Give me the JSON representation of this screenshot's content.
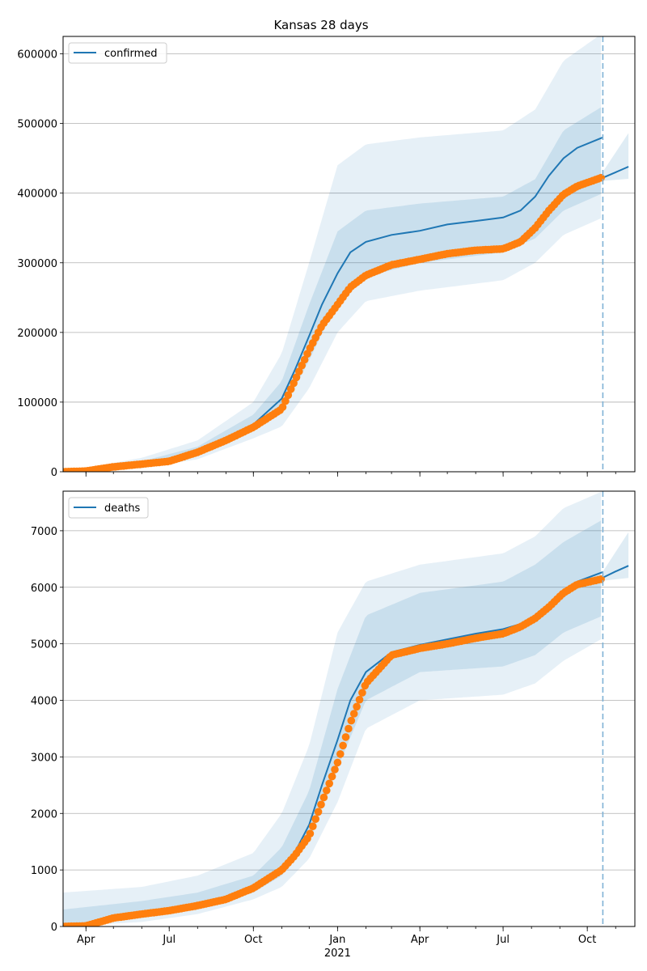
{
  "title": "Kansas 28 days",
  "chart_data": [
    {
      "type": "line",
      "legend": "confirmed",
      "legend_position": "top-left",
      "grid": "horizontal",
      "ylim": [
        0,
        625000
      ],
      "yticks": [
        0,
        100000,
        200000,
        300000,
        400000,
        500000,
        600000
      ],
      "forecast_start": "2021-10-18",
      "model": [
        [
          "2020-03-07",
          0
        ],
        [
          "2020-04-01",
          2000
        ],
        [
          "2020-05-01",
          8000
        ],
        [
          "2020-06-01",
          12000
        ],
        [
          "2020-07-01",
          17000
        ],
        [
          "2020-08-01",
          30000
        ],
        [
          "2020-09-01",
          48000
        ],
        [
          "2020-10-01",
          68000
        ],
        [
          "2020-11-01",
          105000
        ],
        [
          "2020-11-15",
          145000
        ],
        [
          "2020-12-01",
          195000
        ],
        [
          "2020-12-15",
          240000
        ],
        [
          "2021-01-01",
          285000
        ],
        [
          "2021-01-15",
          315000
        ],
        [
          "2021-02-01",
          330000
        ],
        [
          "2021-03-01",
          340000
        ],
        [
          "2021-04-01",
          346000
        ],
        [
          "2021-05-01",
          355000
        ],
        [
          "2021-06-01",
          360000
        ],
        [
          "2021-07-01",
          365000
        ],
        [
          "2021-07-20",
          375000
        ],
        [
          "2021-08-05",
          395000
        ],
        [
          "2021-08-20",
          425000
        ],
        [
          "2021-09-05",
          450000
        ],
        [
          "2021-09-20",
          465000
        ],
        [
          "2021-10-18",
          480000
        ]
      ],
      "model_forecast": [
        [
          "2021-10-18",
          422000
        ],
        [
          "2021-11-01",
          430000
        ],
        [
          "2021-11-15",
          438000
        ]
      ],
      "observed": [
        [
          "2020-03-07",
          0
        ],
        [
          "2020-04-01",
          1000
        ],
        [
          "2020-05-01",
          7000
        ],
        [
          "2020-06-01",
          11000
        ],
        [
          "2020-07-01",
          15000
        ],
        [
          "2020-08-01",
          28000
        ],
        [
          "2020-09-01",
          45000
        ],
        [
          "2020-10-01",
          64000
        ],
        [
          "2020-11-01",
          90000
        ],
        [
          "2020-11-15",
          130000
        ],
        [
          "2020-12-01",
          175000
        ],
        [
          "2020-12-15",
          210000
        ],
        [
          "2021-01-01",
          240000
        ],
        [
          "2021-01-15",
          265000
        ],
        [
          "2021-02-01",
          282000
        ],
        [
          "2021-03-01",
          297000
        ],
        [
          "2021-04-01",
          305000
        ],
        [
          "2021-05-01",
          313000
        ],
        [
          "2021-06-01",
          318000
        ],
        [
          "2021-07-01",
          320000
        ],
        [
          "2021-07-20",
          330000
        ],
        [
          "2021-08-05",
          350000
        ],
        [
          "2021-08-20",
          375000
        ],
        [
          "2021-09-05",
          398000
        ],
        [
          "2021-09-20",
          410000
        ],
        [
          "2021-10-18",
          423000
        ]
      ],
      "bands_lower": [
        [
          "2020-03-07",
          0,
          0
        ],
        [
          "2020-06-01",
          9000,
          5000
        ],
        [
          "2020-08-01",
          24000,
          18000
        ],
        [
          "2020-10-01",
          58000,
          48000
        ],
        [
          "2020-11-01",
          85000,
          65000
        ],
        [
          "2020-12-01",
          160000,
          120000
        ],
        [
          "2021-01-01",
          245000,
          200000
        ],
        [
          "2021-02-01",
          280000,
          245000
        ],
        [
          "2021-04-01",
          300000,
          260000
        ],
        [
          "2021-07-01",
          315000,
          275000
        ],
        [
          "2021-08-05",
          335000,
          300000
        ],
        [
          "2021-09-05",
          375000,
          340000
        ],
        [
          "2021-10-18",
          400000,
          365000
        ]
      ],
      "bands_upper": [
        [
          "2020-03-07",
          0,
          0
        ],
        [
          "2020-06-01",
          15000,
          20000
        ],
        [
          "2020-08-01",
          36000,
          45000
        ],
        [
          "2020-10-01",
          82000,
          100000
        ],
        [
          "2020-11-01",
          130000,
          170000
        ],
        [
          "2020-12-01",
          240000,
          300000
        ],
        [
          "2021-01-01",
          345000,
          440000
        ],
        [
          "2021-02-01",
          375000,
          470000
        ],
        [
          "2021-04-01",
          385000,
          480000
        ],
        [
          "2021-07-01",
          395000,
          490000
        ],
        [
          "2021-08-05",
          420000,
          520000
        ],
        [
          "2021-09-05",
          490000,
          590000
        ],
        [
          "2021-10-18",
          525000,
          630000
        ]
      ]
    },
    {
      "type": "line",
      "legend": "deaths",
      "legend_position": "top-left",
      "grid": "horizontal",
      "ylim": [
        0,
        7700
      ],
      "yticks": [
        0,
        1000,
        2000,
        3000,
        4000,
        5000,
        6000,
        7000
      ],
      "forecast_start": "2021-10-18",
      "model": [
        [
          "2020-03-07",
          0
        ],
        [
          "2020-04-01",
          20
        ],
        [
          "2020-05-01",
          160
        ],
        [
          "2020-06-01",
          230
        ],
        [
          "2020-07-01",
          290
        ],
        [
          "2020-08-01",
          380
        ],
        [
          "2020-09-01",
          500
        ],
        [
          "2020-10-01",
          700
        ],
        [
          "2020-11-01",
          1050
        ],
        [
          "2020-11-15",
          1300
        ],
        [
          "2020-12-01",
          1800
        ],
        [
          "2020-12-15",
          2500
        ],
        [
          "2021-01-01",
          3300
        ],
        [
          "2021-01-15",
          4000
        ],
        [
          "2021-02-01",
          4500
        ],
        [
          "2021-03-01",
          4850
        ],
        [
          "2021-04-01",
          4980
        ],
        [
          "2021-05-01",
          5080
        ],
        [
          "2021-06-01",
          5180
        ],
        [
          "2021-07-01",
          5260
        ],
        [
          "2021-07-20",
          5350
        ],
        [
          "2021-08-05",
          5500
        ],
        [
          "2021-08-20",
          5700
        ],
        [
          "2021-09-05",
          5900
        ],
        [
          "2021-09-20",
          6100
        ],
        [
          "2021-10-18",
          6270
        ]
      ],
      "model_forecast": [
        [
          "2021-10-18",
          6170
        ],
        [
          "2021-11-01",
          6280
        ],
        [
          "2021-11-15",
          6380
        ]
      ],
      "observed": [
        [
          "2020-03-07",
          0
        ],
        [
          "2020-04-01",
          10
        ],
        [
          "2020-05-01",
          150
        ],
        [
          "2020-06-01",
          220
        ],
        [
          "2020-07-01",
          280
        ],
        [
          "2020-08-01",
          370
        ],
        [
          "2020-09-01",
          480
        ],
        [
          "2020-10-01",
          680
        ],
        [
          "2020-11-01",
          1000
        ],
        [
          "2020-11-15",
          1250
        ],
        [
          "2020-12-01",
          1600
        ],
        [
          "2020-12-15",
          2200
        ],
        [
          "2021-01-01",
          2900
        ],
        [
          "2021-01-15",
          3600
        ],
        [
          "2021-02-01",
          4300
        ],
        [
          "2021-03-01",
          4800
        ],
        [
          "2021-04-01",
          4920
        ],
        [
          "2021-05-01",
          5000
        ],
        [
          "2021-06-01",
          5100
        ],
        [
          "2021-07-01",
          5180
        ],
        [
          "2021-07-20",
          5300
        ],
        [
          "2021-08-05",
          5450
        ],
        [
          "2021-08-20",
          5650
        ],
        [
          "2021-09-05",
          5900
        ],
        [
          "2021-09-20",
          6050
        ],
        [
          "2021-10-18",
          6150
        ]
      ],
      "bands_lower": [
        [
          "2020-03-07",
          0,
          0
        ],
        [
          "2020-06-01",
          150,
          80
        ],
        [
          "2020-08-01",
          300,
          220
        ],
        [
          "2020-10-01",
          600,
          480
        ],
        [
          "2020-11-01",
          900,
          700
        ],
        [
          "2020-12-01",
          1500,
          1200
        ],
        [
          "2021-01-01",
          2800,
          2200
        ],
        [
          "2021-02-01",
          4000,
          3500
        ],
        [
          "2021-04-01",
          4500,
          4000
        ],
        [
          "2021-07-01",
          4600,
          4100
        ],
        [
          "2021-08-05",
          4800,
          4300
        ],
        [
          "2021-09-05",
          5200,
          4700
        ],
        [
          "2021-10-18",
          5500,
          5100
        ]
      ],
      "bands_upper": [
        [
          "2020-03-07",
          300,
          600
        ],
        [
          "2020-06-01",
          450,
          700
        ],
        [
          "2020-08-01",
          600,
          900
        ],
        [
          "2020-10-01",
          900,
          1300
        ],
        [
          "2020-11-01",
          1400,
          2000
        ],
        [
          "2020-12-01",
          2400,
          3200
        ],
        [
          "2021-01-01",
          4200,
          5200
        ],
        [
          "2021-02-01",
          5500,
          6100
        ],
        [
          "2021-04-01",
          5900,
          6400
        ],
        [
          "2021-07-01",
          6100,
          6600
        ],
        [
          "2021-08-05",
          6400,
          6900
        ],
        [
          "2021-09-05",
          6800,
          7400
        ],
        [
          "2021-10-18",
          7200,
          7700
        ]
      ]
    }
  ],
  "x_axis": {
    "start": "2020-03-07",
    "end": "2021-11-22",
    "ticks": [
      {
        "date": "2020-04-01",
        "label": "Apr"
      },
      {
        "date": "2020-07-01",
        "label": "Jul"
      },
      {
        "date": "2020-10-01",
        "label": "Oct"
      },
      {
        "date": "2021-01-01",
        "label": "Jan"
      },
      {
        "date": "2021-04-01",
        "label": "Apr"
      },
      {
        "date": "2021-07-01",
        "label": "Jul"
      },
      {
        "date": "2021-10-01",
        "label": "Oct"
      }
    ],
    "year_label": "2021"
  },
  "colors": {
    "line": "#1f77b4",
    "observed": "#ff7f0e",
    "band": "#1f77b4",
    "grid": "#b0b0b0",
    "forecast_line": "#7fb2d6"
  }
}
